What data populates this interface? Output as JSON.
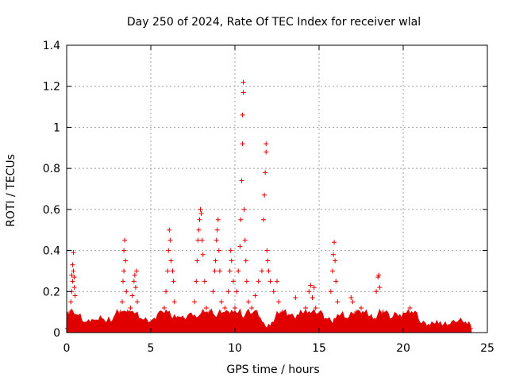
{
  "chart_data": {
    "type": "scatter",
    "title": "Day 250 of 2024, Rate Of TEC Index for receiver wlal",
    "xlabel": "GPS time / hours",
    "ylabel": "ROTI / TECUs",
    "xlim": [
      0,
      25
    ],
    "ylim": [
      0,
      1.4
    ],
    "xticks": [
      0,
      5,
      10,
      15,
      20,
      25
    ],
    "yticks": [
      0,
      0.2,
      0.4,
      0.6,
      0.8,
      1,
      1.2,
      1.4
    ],
    "xtick_labels": [
      "0",
      "5",
      "10",
      "15",
      "20",
      "25"
    ],
    "ytick_labels": [
      "0",
      "0.2",
      "0.4",
      "0.6",
      "0.8",
      "1",
      "1.2",
      "1.4"
    ],
    "grid": true,
    "marker": "+",
    "color": "#e00000",
    "series": [
      {
        "name": "ROTI",
        "points": [
          [
            0.05,
            0.02
          ],
          [
            0.15,
            0.05
          ],
          [
            0.2,
            0.1
          ],
          [
            0.25,
            0.15
          ],
          [
            0.3,
            0.2
          ],
          [
            0.3,
            0.28
          ],
          [
            0.35,
            0.25
          ],
          [
            0.35,
            0.33
          ],
          [
            0.4,
            0.3
          ],
          [
            0.4,
            0.39
          ],
          [
            0.45,
            0.22
          ],
          [
            0.45,
            0.27
          ],
          [
            0.5,
            0.18
          ],
          [
            0.55,
            0.08
          ],
          [
            0.7,
            0.05
          ],
          [
            1.0,
            0.04
          ],
          [
            1.5,
            0.05
          ],
          [
            2.0,
            0.06
          ],
          [
            2.5,
            0.05
          ],
          [
            3.0,
            0.06
          ],
          [
            3.1,
            0.08
          ],
          [
            3.2,
            0.1
          ],
          [
            3.3,
            0.15
          ],
          [
            3.35,
            0.25
          ],
          [
            3.4,
            0.3
          ],
          [
            3.4,
            0.4
          ],
          [
            3.45,
            0.45
          ],
          [
            3.5,
            0.35
          ],
          [
            3.55,
            0.2
          ],
          [
            3.6,
            0.1
          ],
          [
            3.8,
            0.12
          ],
          [
            3.9,
            0.18
          ],
          [
            4.0,
            0.25
          ],
          [
            4.05,
            0.28
          ],
          [
            4.1,
            0.22
          ],
          [
            4.15,
            0.3
          ],
          [
            4.2,
            0.15
          ],
          [
            4.4,
            0.06
          ],
          [
            4.8,
            0.05
          ],
          [
            5.2,
            0.05
          ],
          [
            5.6,
            0.08
          ],
          [
            5.8,
            0.12
          ],
          [
            5.9,
            0.2
          ],
          [
            6.0,
            0.3
          ],
          [
            6.05,
            0.4
          ],
          [
            6.1,
            0.5
          ],
          [
            6.15,
            0.45
          ],
          [
            6.2,
            0.35
          ],
          [
            6.3,
            0.3
          ],
          [
            6.35,
            0.25
          ],
          [
            6.4,
            0.15
          ],
          [
            6.6,
            0.07
          ],
          [
            7.0,
            0.06
          ],
          [
            7.4,
            0.08
          ],
          [
            7.6,
            0.15
          ],
          [
            7.7,
            0.25
          ],
          [
            7.75,
            0.35
          ],
          [
            7.8,
            0.45
          ],
          [
            7.85,
            0.5
          ],
          [
            7.9,
            0.55
          ],
          [
            7.95,
            0.6
          ],
          [
            8.0,
            0.58
          ],
          [
            8.05,
            0.45
          ],
          [
            8.1,
            0.38
          ],
          [
            8.2,
            0.25
          ],
          [
            8.3,
            0.12
          ],
          [
            8.5,
            0.1
          ],
          [
            8.7,
            0.2
          ],
          [
            8.8,
            0.3
          ],
          [
            8.85,
            0.35
          ],
          [
            8.9,
            0.45
          ],
          [
            8.95,
            0.5
          ],
          [
            9.0,
            0.55
          ],
          [
            9.05,
            0.4
          ],
          [
            9.1,
            0.3
          ],
          [
            9.2,
            0.15
          ],
          [
            9.4,
            0.12
          ],
          [
            9.6,
            0.2
          ],
          [
            9.7,
            0.3
          ],
          [
            9.75,
            0.4
          ],
          [
            9.8,
            0.35
          ],
          [
            9.9,
            0.25
          ],
          [
            10.0,
            0.12
          ],
          [
            10.1,
            0.2
          ],
          [
            10.2,
            0.3
          ],
          [
            10.3,
            0.42
          ],
          [
            10.35,
            0.55
          ],
          [
            10.4,
            0.74
          ],
          [
            10.45,
            0.92
          ],
          [
            10.45,
            1.06
          ],
          [
            10.5,
            1.17
          ],
          [
            10.5,
            1.22
          ],
          [
            10.55,
            0.6
          ],
          [
            10.6,
            0.45
          ],
          [
            10.65,
            0.35
          ],
          [
            10.7,
            0.25
          ],
          [
            10.8,
            0.15
          ],
          [
            11.0,
            0.12
          ],
          [
            11.2,
            0.18
          ],
          [
            11.4,
            0.25
          ],
          [
            11.6,
            0.3
          ],
          [
            11.7,
            0.55
          ],
          [
            11.75,
            0.67
          ],
          [
            11.8,
            0.78
          ],
          [
            11.85,
            0.88
          ],
          [
            11.85,
            0.92
          ],
          [
            11.9,
            0.4
          ],
          [
            11.95,
            0.35
          ],
          [
            12.0,
            0.3
          ],
          [
            12.1,
            0.25
          ],
          [
            12.3,
            0.2
          ],
          [
            12.5,
            0.25
          ],
          [
            12.6,
            0.15
          ],
          [
            12.8,
            0.1
          ],
          [
            13.2,
            0.08
          ],
          [
            13.6,
            0.17
          ],
          [
            13.9,
            0.08
          ],
          [
            14.2,
            0.12
          ],
          [
            14.4,
            0.2
          ],
          [
            14.5,
            0.23
          ],
          [
            14.6,
            0.17
          ],
          [
            14.7,
            0.22
          ],
          [
            14.8,
            0.12
          ],
          [
            15.0,
            0.08
          ],
          [
            15.4,
            0.06
          ],
          [
            15.7,
            0.2
          ],
          [
            15.8,
            0.3
          ],
          [
            15.85,
            0.38
          ],
          [
            15.9,
            0.44
          ],
          [
            15.95,
            0.35
          ],
          [
            16.0,
            0.25
          ],
          [
            16.1,
            0.15
          ],
          [
            16.3,
            0.08
          ],
          [
            16.7,
            0.06
          ],
          [
            16.9,
            0.17
          ],
          [
            17.0,
            0.15
          ],
          [
            17.2,
            0.1
          ],
          [
            17.5,
            0.12
          ],
          [
            17.7,
            0.08
          ],
          [
            18.0,
            0.07
          ],
          [
            18.4,
            0.2
          ],
          [
            18.5,
            0.27
          ],
          [
            18.55,
            0.28
          ],
          [
            18.6,
            0.22
          ],
          [
            18.8,
            0.1
          ],
          [
            19.2,
            0.06
          ],
          [
            19.6,
            0.08
          ],
          [
            19.8,
            0.07
          ],
          [
            20.2,
            0.08
          ],
          [
            20.4,
            0.12
          ],
          [
            20.6,
            0.07
          ],
          [
            21.0,
            0.04
          ],
          [
            21.5,
            0.03
          ],
          [
            22.0,
            0.04
          ],
          [
            22.5,
            0.03
          ],
          [
            23.0,
            0.04
          ],
          [
            23.3,
            0.05
          ],
          [
            23.6,
            0.04
          ],
          [
            23.9,
            0.03
          ],
          [
            24.0,
            0.02
          ]
        ]
      }
    ]
  }
}
